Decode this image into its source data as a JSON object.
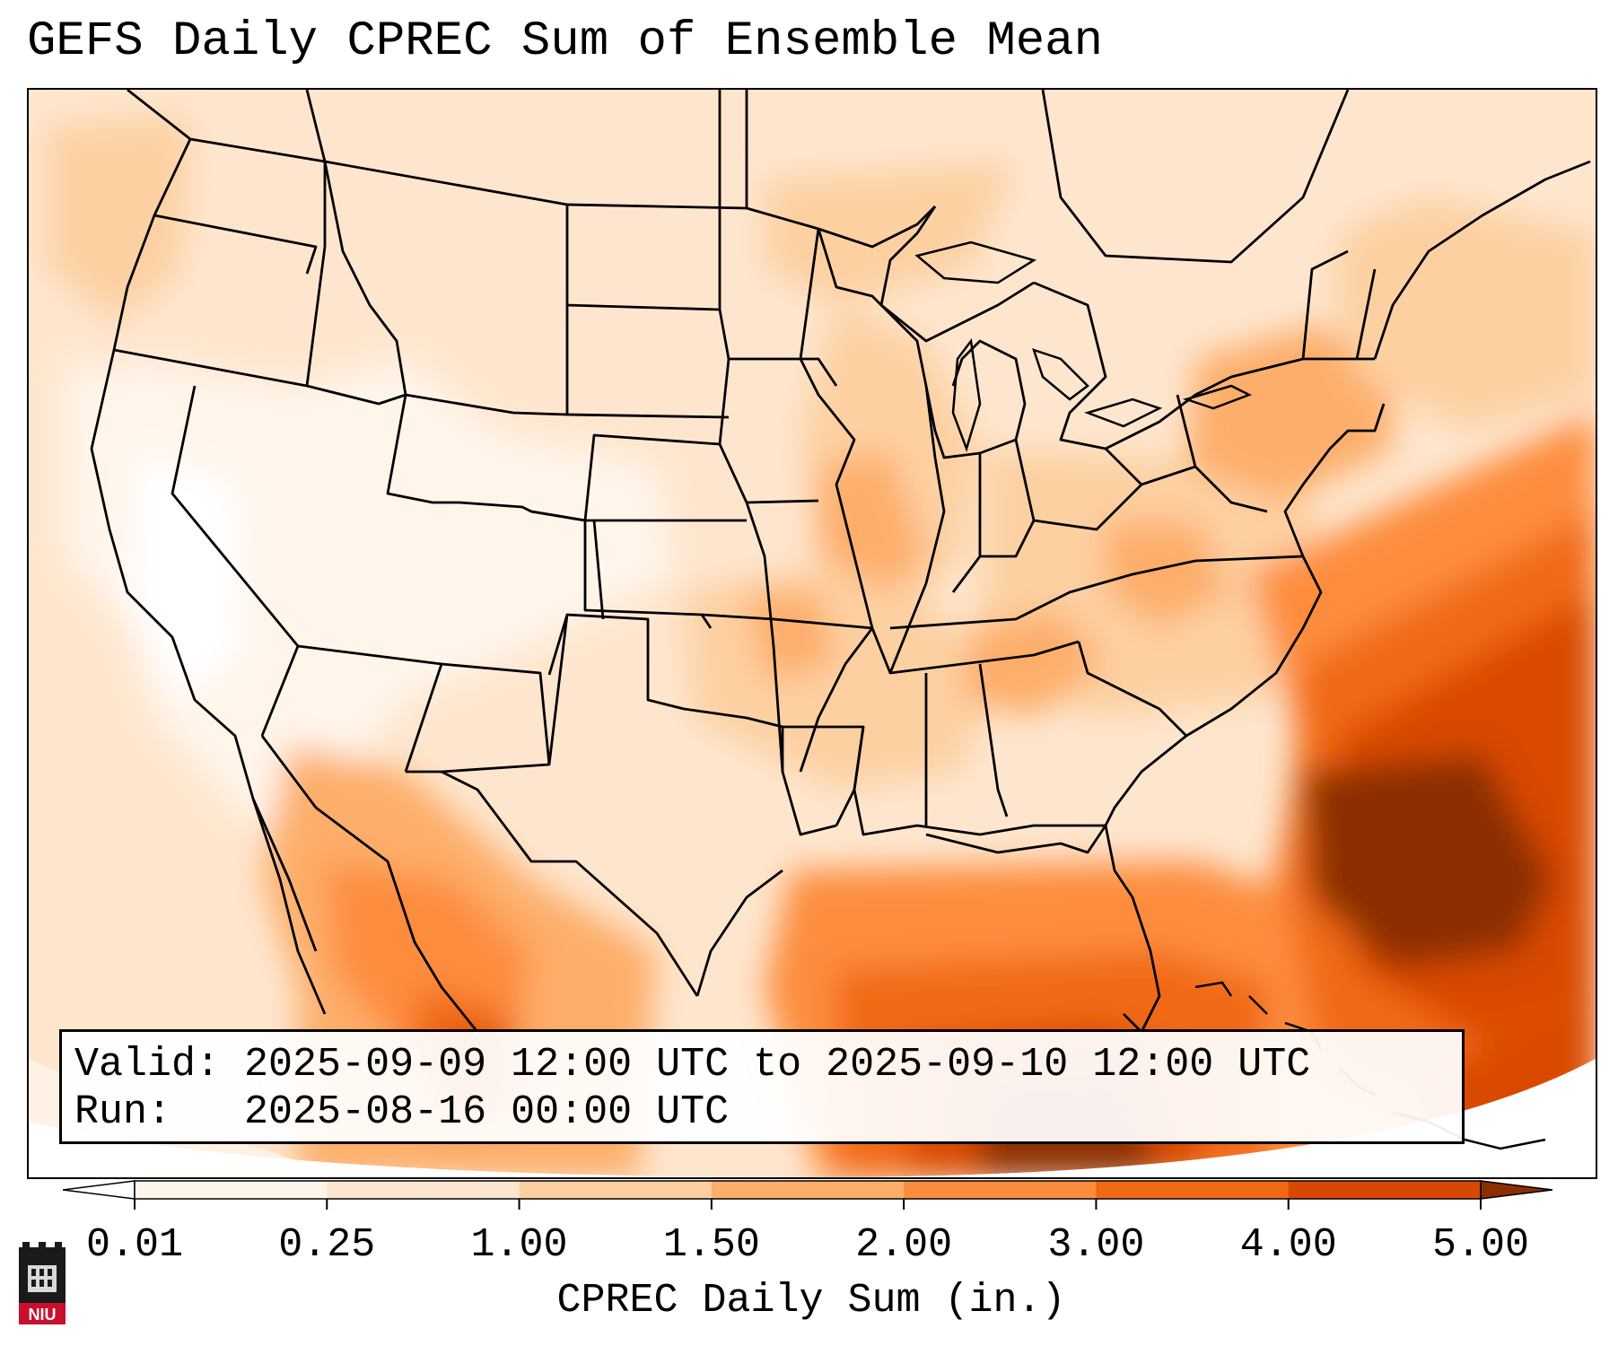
{
  "title": "GEFS Daily CPREC Sum of Ensemble Mean",
  "info": {
    "valid_label": "Valid:",
    "valid_value": "2025-09-09 12:00 UTC to 2025-09-10 12:00 UTC",
    "run_label": "Run:",
    "run_value": "2025-08-16 00:00 UTC"
  },
  "colorbar": {
    "title": "CPREC Daily Sum (in.)",
    "ticks": [
      "0.01",
      "0.25",
      "1.00",
      "1.50",
      "2.00",
      "3.00",
      "4.00",
      "5.00"
    ],
    "colors": [
      "#fff5eb",
      "#fee6ce",
      "#fdd0a2",
      "#fdae6b",
      "#fd8d3c",
      "#f16913",
      "#d94801",
      "#8c2d04"
    ]
  },
  "logo": {
    "text": "NIU",
    "accent": "#c8102e"
  }
}
